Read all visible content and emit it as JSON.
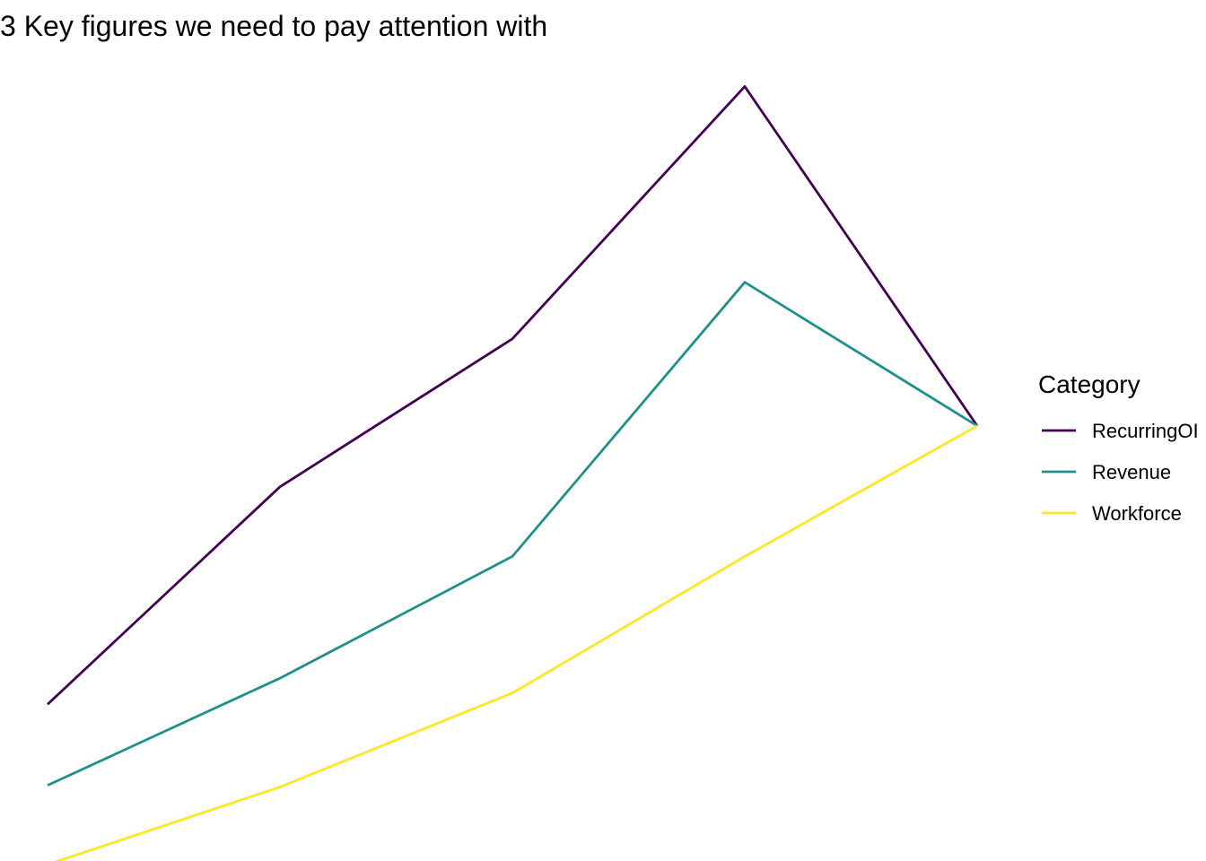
{
  "chart_data": {
    "type": "line",
    "title": "3 Key figures we need to pay attention with",
    "xlabel": "",
    "ylabel": "",
    "x": [
      1,
      2,
      3,
      4,
      5
    ],
    "xlim": [
      1,
      5
    ],
    "ylim": [
      0.05,
      0.993
    ],
    "grid": false,
    "legend": {
      "title": "Category",
      "placement": "right"
    },
    "series": [
      {
        "name": "RecurringOI",
        "color": "#440154",
        "values": [
          0.23,
          0.48,
          0.65,
          0.94,
          0.55
        ]
      },
      {
        "name": "Revenue",
        "color": "#21908C",
        "values": [
          0.137,
          0.26,
          0.4,
          0.715,
          0.55
        ]
      },
      {
        "name": "Workforce",
        "color": "#FDE725",
        "values": [
          0.046,
          0.135,
          0.243,
          0.4,
          0.55
        ]
      }
    ]
  }
}
